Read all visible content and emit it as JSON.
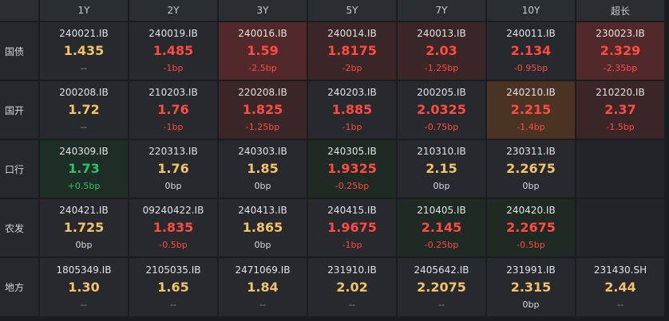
{
  "headers": [
    "1Y",
    "2Y",
    "3Y",
    "5Y",
    "7Y",
    "10Y",
    "超长"
  ],
  "rows": [
    {
      "label": "国债",
      "cells": [
        {
          "code": "240021.IB",
          "val": "1.435",
          "chg": "--",
          "dir": "flat",
          "chgdir": "none",
          "bg": ""
        },
        {
          "code": "240019.IB",
          "val": "1.485",
          "chg": "-1bp",
          "dir": "up",
          "chgdir": "up",
          "bg": ""
        },
        {
          "code": "240016.IB",
          "val": "1.59",
          "chg": "-2.5bp",
          "dir": "up",
          "chgdir": "up",
          "bg": "r1"
        },
        {
          "code": "240014.IB",
          "val": "1.8175",
          "chg": "-2bp",
          "dir": "up",
          "chgdir": "up",
          "bg": "r2"
        },
        {
          "code": "240013.IB",
          "val": "2.03",
          "chg": "-1.25bp",
          "dir": "up",
          "chgdir": "up",
          "bg": "r2"
        },
        {
          "code": "240011.IB",
          "val": "2.134",
          "chg": "-0.95bp",
          "dir": "up",
          "chgdir": "up",
          "bg": ""
        },
        {
          "code": "230023.IB",
          "val": "2.329",
          "chg": "-2.35bp",
          "dir": "up",
          "chgdir": "up",
          "bg": "r1"
        }
      ]
    },
    {
      "label": "国开",
      "cells": [
        {
          "code": "200208.IB",
          "val": "1.72",
          "chg": "--",
          "dir": "flat",
          "chgdir": "none",
          "bg": ""
        },
        {
          "code": "210203.IB",
          "val": "1.76",
          "chg": "-1bp",
          "dir": "up",
          "chgdir": "up",
          "bg": ""
        },
        {
          "code": "220208.IB",
          "val": "1.825",
          "chg": "-1.25bp",
          "dir": "up",
          "chgdir": "up",
          "bg": "r2"
        },
        {
          "code": "240203.IB",
          "val": "1.885",
          "chg": "-1bp",
          "dir": "up",
          "chgdir": "up",
          "bg": ""
        },
        {
          "code": "200205.IB",
          "val": "2.0325",
          "chg": "-0.75bp",
          "dir": "up",
          "chgdir": "up",
          "bg": ""
        },
        {
          "code": "240210.IB",
          "val": "2.215",
          "chg": "-1.4bp",
          "dir": "up",
          "chgdir": "up",
          "bg": "o"
        },
        {
          "code": "210220.IB",
          "val": "2.37",
          "chg": "-1.5bp",
          "dir": "up",
          "chgdir": "up",
          "bg": "r2"
        }
      ]
    },
    {
      "label": "口行",
      "cells": [
        {
          "code": "240309.IB",
          "val": "1.73",
          "chg": "+0.5bp",
          "dir": "dn",
          "chgdir": "dn",
          "bg": "g"
        },
        {
          "code": "220313.IB",
          "val": "1.76",
          "chg": "0bp",
          "dir": "flat",
          "chgdir": "flat",
          "bg": ""
        },
        {
          "code": "240303.IB",
          "val": "1.85",
          "chg": "0bp",
          "dir": "flat",
          "chgdir": "flat",
          "bg": ""
        },
        {
          "code": "240305.IB",
          "val": "1.9325",
          "chg": "-0.25bp",
          "dir": "up",
          "chgdir": "up",
          "bg": "g2"
        },
        {
          "code": "210310.IB",
          "val": "2.15",
          "chg": "0bp",
          "dir": "flat",
          "chgdir": "flat",
          "bg": ""
        },
        {
          "code": "230311.IB",
          "val": "2.2675",
          "chg": "0bp",
          "dir": "flat",
          "chgdir": "flat",
          "bg": ""
        },
        {
          "code": "",
          "val": "",
          "chg": "",
          "dir": "flat",
          "chgdir": "none",
          "bg": "empty"
        }
      ]
    },
    {
      "label": "农发",
      "cells": [
        {
          "code": "240421.IB",
          "val": "1.725",
          "chg": "0bp",
          "dir": "flat",
          "chgdir": "flat",
          "bg": ""
        },
        {
          "code": "09240422.IB",
          "val": "1.835",
          "chg": "-0.5bp",
          "dir": "up",
          "chgdir": "up",
          "bg": ""
        },
        {
          "code": "240413.IB",
          "val": "1.865",
          "chg": "0bp",
          "dir": "flat",
          "chgdir": "flat",
          "bg": ""
        },
        {
          "code": "240415.IB",
          "val": "1.9675",
          "chg": "-1bp",
          "dir": "up",
          "chgdir": "up",
          "bg": ""
        },
        {
          "code": "210405.IB",
          "val": "2.145",
          "chg": "-0.25bp",
          "dir": "up",
          "chgdir": "up",
          "bg": "g2"
        },
        {
          "code": "240420.IB",
          "val": "2.2675",
          "chg": "-0.5bp",
          "dir": "up",
          "chgdir": "up",
          "bg": "g2"
        },
        {
          "code": "",
          "val": "",
          "chg": "",
          "dir": "flat",
          "chgdir": "none",
          "bg": "empty"
        }
      ]
    },
    {
      "label": "地方",
      "cells": [
        {
          "code": "1805349.IB",
          "val": "1.30",
          "chg": "--",
          "dir": "flat",
          "chgdir": "none",
          "bg": ""
        },
        {
          "code": "2105035.IB",
          "val": "1.65",
          "chg": "--",
          "dir": "flat",
          "chgdir": "none",
          "bg": ""
        },
        {
          "code": "2471069.IB",
          "val": "1.84",
          "chg": "--",
          "dir": "flat",
          "chgdir": "none",
          "bg": ""
        },
        {
          "code": "231910.IB",
          "val": "2.02",
          "chg": "--",
          "dir": "flat",
          "chgdir": "none",
          "bg": ""
        },
        {
          "code": "2405642.IB",
          "val": "2.2075",
          "chg": "--",
          "dir": "flat",
          "chgdir": "none",
          "bg": ""
        },
        {
          "code": "231991.IB",
          "val": "2.315",
          "chg": "0bp",
          "dir": "flat",
          "chgdir": "flat",
          "bg": ""
        },
        {
          "code": "231430.SH",
          "val": "2.44",
          "chg": "--",
          "dir": "flat",
          "chgdir": "none",
          "bg": ""
        }
      ]
    }
  ],
  "colors": {
    "up": "#ff4b42",
    "flat": "#f2c36a",
    "down": "#2fc06a",
    "background": "#1d1f22"
  }
}
